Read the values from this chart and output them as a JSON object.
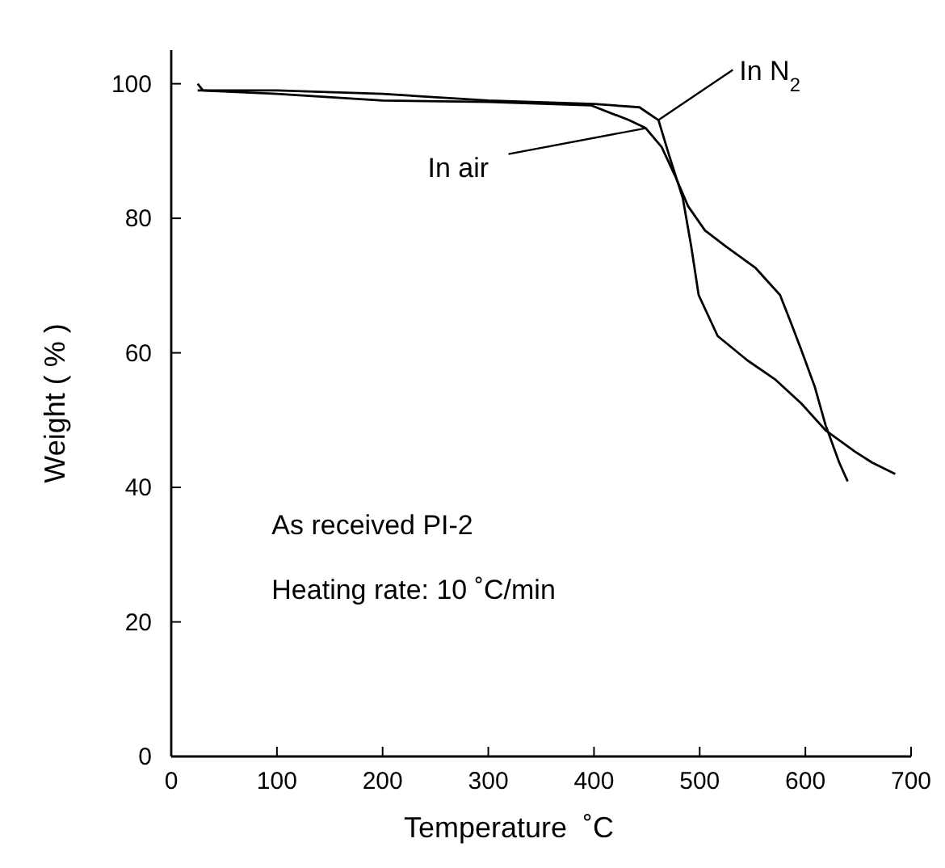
{
  "chart_data": {
    "type": "line",
    "xlabel": "Temperature  ˚C",
    "ylabel": "Weight ( % )",
    "xlim": [
      0,
      700
    ],
    "ylim": [
      0,
      105
    ],
    "xticks": [
      0,
      100,
      200,
      300,
      400,
      500,
      600,
      700
    ],
    "yticks": [
      0,
      20,
      40,
      60,
      80,
      100
    ],
    "grid": false,
    "marker": "none",
    "line_style": "solid",
    "series": [
      {
        "color": "#000000",
        "x": [
          25,
          100,
          200,
          300,
          400,
          443,
          461,
          471,
          484,
          492,
          499,
          517,
          545,
          571,
          596,
          619,
          647,
          663,
          685
        ],
        "values": [
          99,
          99,
          98.5,
          97.5,
          97,
          96.5,
          94.6,
          89.4,
          83,
          75.8,
          68.6,
          62.5,
          58.9,
          56.1,
          52.5,
          48.5,
          45.3,
          43.7,
          42
        ]
      },
      {
        "color": "#000000",
        "x": [
          25,
          30,
          100,
          200,
          300,
          397,
          433,
          449,
          464,
          477,
          489,
          505,
          525,
          553,
          576,
          586,
          596,
          609,
          619,
          632,
          640
        ],
        "values": [
          100,
          99,
          98.5,
          97.5,
          97.3,
          96.8,
          94.6,
          93.4,
          90.6,
          86.2,
          81.8,
          78.2,
          75.8,
          72.6,
          68.6,
          64.6,
          60.5,
          54.9,
          49.3,
          43.7,
          40.9
        ]
      }
    ],
    "annotations": [
      {
        "text": "In N$_{2}$",
        "x": 461,
        "y": 94.6
      },
      {
        "text": "In air",
        "x": 449,
        "y": 93.4
      },
      "As received PI-2",
      "Heating rate: 10 ˚C/min"
    ]
  }
}
